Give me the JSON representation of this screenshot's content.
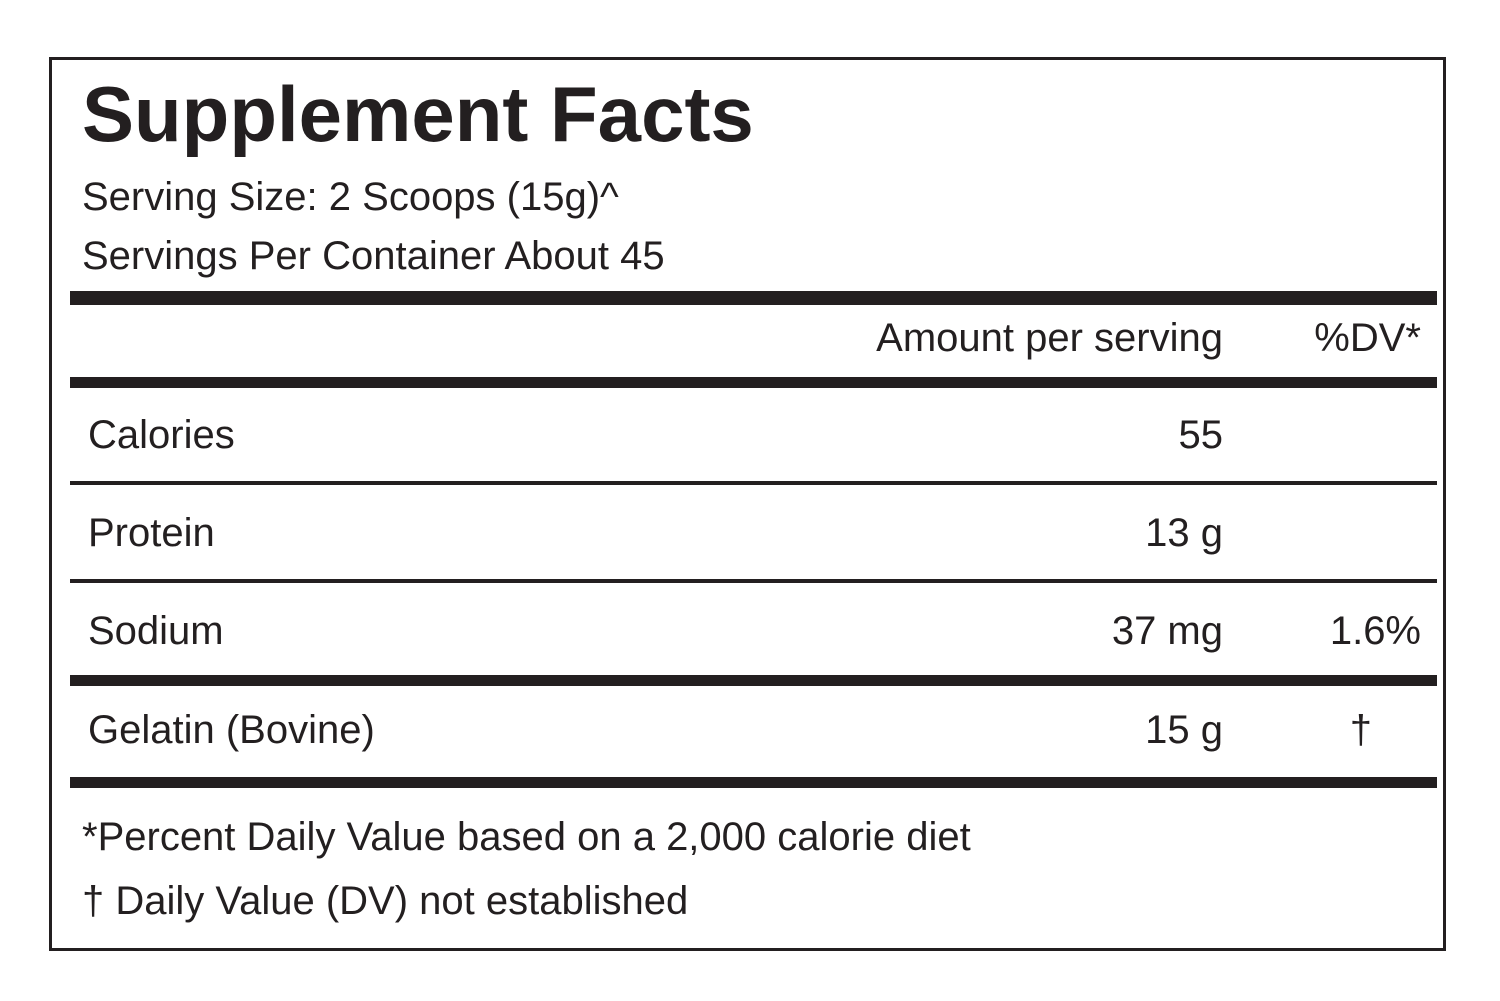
{
  "label": {
    "title": "Supplement Facts",
    "serving_size": "Serving Size: 2 Scoops (15g)^",
    "servings_per_container": "Servings Per Container About 45",
    "header": {
      "amount": "Amount per serving",
      "dv": "%DV*"
    },
    "rows": [
      {
        "name": "Calories",
        "amount": "55",
        "dv": ""
      },
      {
        "name": "Protein",
        "amount": "13 g",
        "dv": ""
      },
      {
        "name": "Sodium",
        "amount": "37 mg",
        "dv": "1.6%"
      },
      {
        "name": "Gelatin (Bovine)",
        "amount": "15 g",
        "dv": "†"
      }
    ],
    "footnotes": [
      "*Percent Daily Value based on a 2,000 calorie diet",
      "† Daily Value (DV) not established"
    ]
  }
}
